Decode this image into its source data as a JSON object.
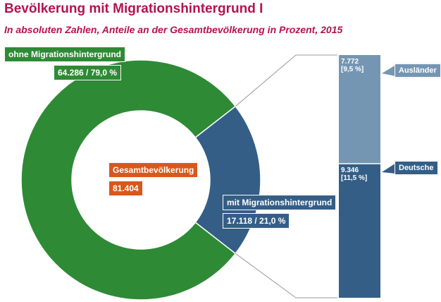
{
  "title": "Bevölkerung mit Migrationshintergrund I",
  "subtitle": "In absoluten Zahlen, Anteile an der Gesamtbevölkerung in Prozent, 2015",
  "chart_data": [
    {
      "type": "pie",
      "style": "donut",
      "center_label": "Gesamtbevölkerung",
      "center_value": "81.404",
      "slices": [
        {
          "name": "ohne Migrationshintergrund",
          "value": 64286,
          "percent": 79.0,
          "label": "64.286 / 79,0 %",
          "color": "#2e8a35"
        },
        {
          "name": "mit Migrationshintergrund",
          "value": 17118,
          "percent": 21.0,
          "label": "17.118 / 21,0 %",
          "color": "#345e86"
        }
      ]
    },
    {
      "type": "bar",
      "stacked": true,
      "series": [
        {
          "name": "Ausländer",
          "value": 7772,
          "label_value": "7.772",
          "label_percent": "[9,5 %]",
          "color": "#7596b3"
        },
        {
          "name": "Deutsche",
          "value": 9346,
          "label_value": "9.346",
          "label_percent": "[11,5 %]",
          "color": "#345e86"
        }
      ]
    }
  ]
}
